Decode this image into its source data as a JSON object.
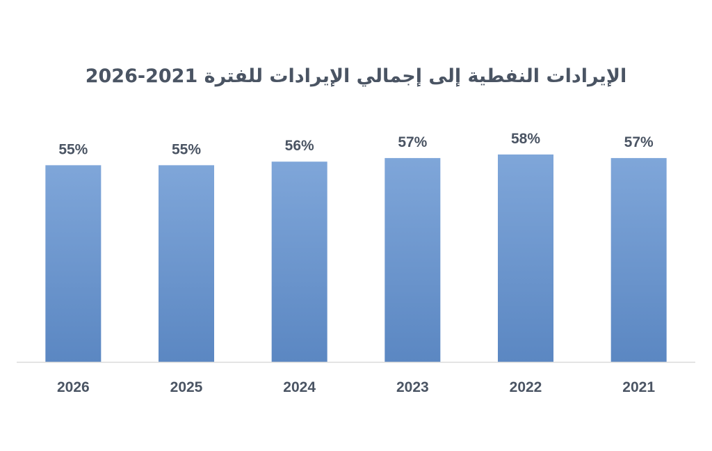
{
  "chart_data": {
    "type": "bar",
    "title": "الإيرادات النفطية إلى إجمالي الإيرادات للفترة 2021-2026",
    "categories": [
      "2026",
      "2025",
      "2024",
      "2023",
      "2022",
      "2021"
    ],
    "values": [
      55,
      55,
      56,
      57,
      58,
      57
    ],
    "value_labels": [
      "55%",
      "55%",
      "56%",
      "57%",
      "58%",
      "57%"
    ],
    "ylim": [
      0,
      65
    ],
    "grid": false,
    "legend": "none",
    "colors": {
      "bar_top": "#7fa6d9",
      "bar_bottom": "#5b87c2",
      "axis": "#d9d9d9",
      "text": "#4a5463"
    }
  }
}
